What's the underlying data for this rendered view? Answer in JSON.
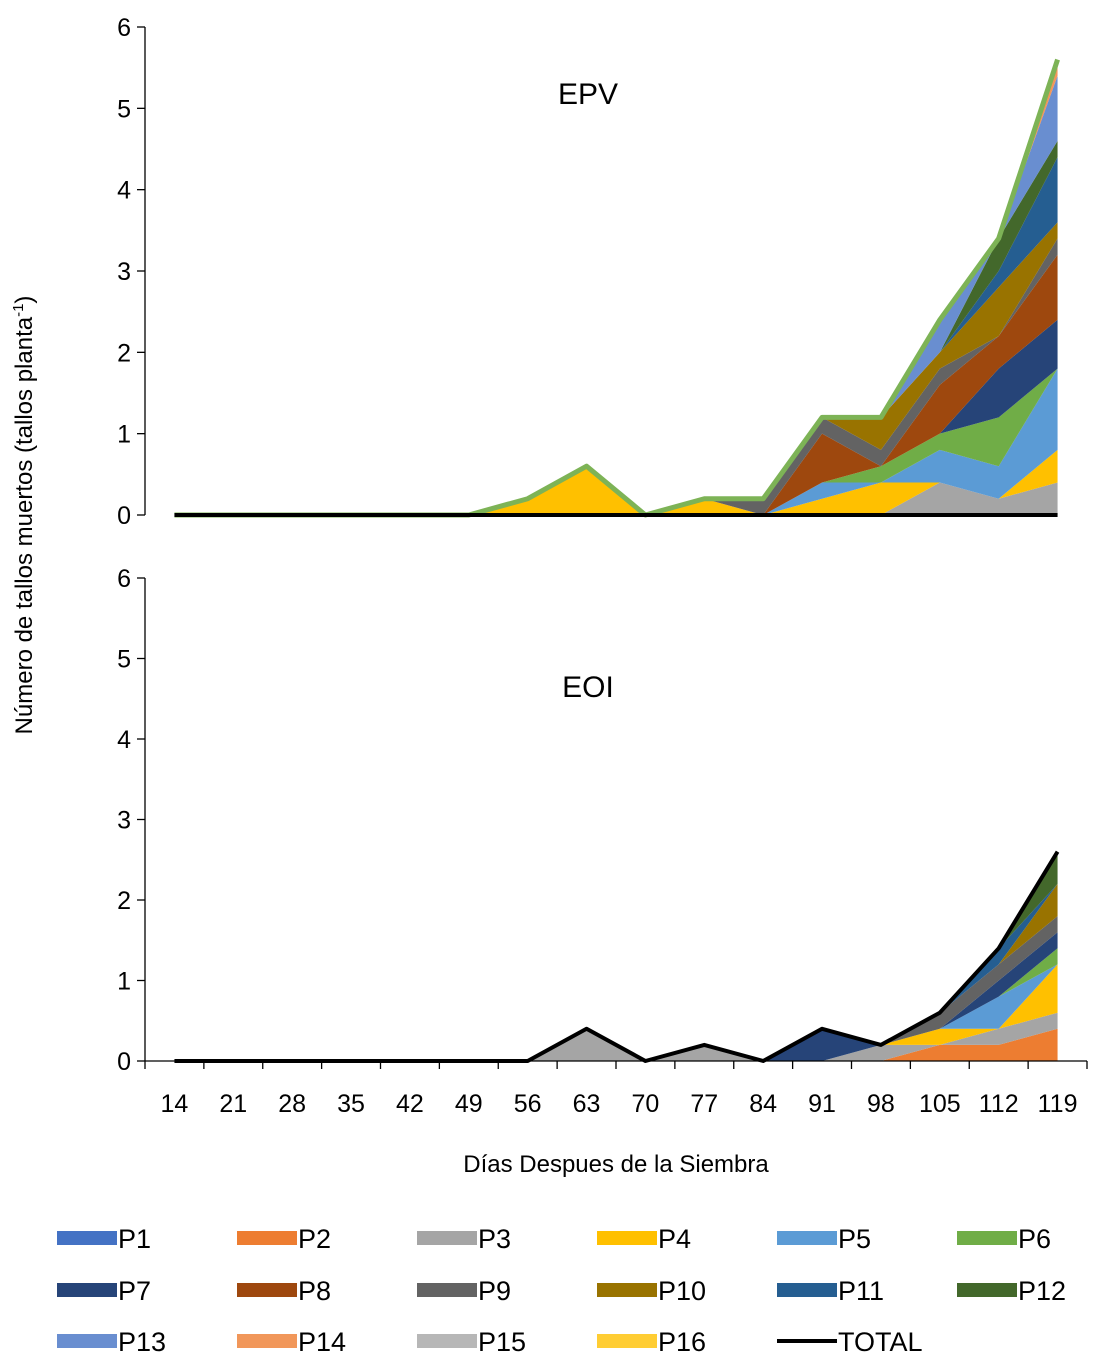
{
  "colors": {
    "P1": "#4472C4",
    "P2": "#ED7D31",
    "P3": "#A5A5A5",
    "P4": "#FFC000",
    "P5": "#5B9BD5",
    "P6": "#70AD47",
    "P7": "#264478",
    "P8": "#9E480E",
    "P9": "#636363",
    "P10": "#997300",
    "P11": "#255E91",
    "P12": "#43682B",
    "P13": "#698ED0",
    "P14": "#F1975A",
    "P15": "#B7B7B7",
    "P16": "#FFCD33",
    "TOTAL": "#000000",
    "EPV_outline": "#7DB356"
  },
  "chart_data": {
    "type": "area",
    "stacked": true,
    "xlabel": "Días Despues de la Siembra",
    "ylabel": "Número de tallos muertos (tallos planta",
    "ylabel_sup": "-1",
    "ylabel_close": ")",
    "categories": [
      "14",
      "21",
      "28",
      "35",
      "42",
      "49",
      "56",
      "63",
      "70",
      "77",
      "84",
      "91",
      "98",
      "105",
      "112",
      "119"
    ],
    "ylim": [
      0,
      6
    ],
    "yticks": [
      "0",
      "1",
      "2",
      "3",
      "4",
      "5",
      "6"
    ],
    "legend": [
      "P1",
      "P2",
      "P3",
      "P4",
      "P5",
      "P6",
      "P7",
      "P8",
      "P9",
      "P10",
      "P11",
      "P12",
      "P13",
      "P14",
      "P15",
      "P16",
      "TOTAL"
    ],
    "legend_position": "bottom",
    "panels": [
      {
        "label": "EPV",
        "series": [
          {
            "name": "P1",
            "values": [
              0,
              0,
              0,
              0,
              0,
              0,
              0,
              0,
              0,
              0,
              0,
              0,
              0,
              0,
              0,
              0
            ]
          },
          {
            "name": "P2",
            "values": [
              0,
              0,
              0,
              0,
              0,
              0,
              0,
              0,
              0,
              0,
              0,
              0,
              0,
              0,
              0,
              0
            ]
          },
          {
            "name": "P3",
            "values": [
              0,
              0,
              0,
              0,
              0,
              0,
              0,
              0,
              0,
              0,
              0,
              0,
              0,
              0.4,
              0.2,
              0.4
            ]
          },
          {
            "name": "P4",
            "values": [
              0,
              0,
              0,
              0,
              0,
              0,
              0.2,
              0.6,
              0,
              0.2,
              0,
              0.2,
              0.4,
              0,
              0,
              0.4
            ]
          },
          {
            "name": "P5",
            "values": [
              0,
              0,
              0,
              0,
              0,
              0,
              0,
              0,
              0,
              0,
              0,
              0.2,
              0,
              0.4,
              0.4,
              1.0
            ]
          },
          {
            "name": "P6",
            "values": [
              0,
              0,
              0,
              0,
              0,
              0,
              0,
              0,
              0,
              0,
              0,
              0,
              0.2,
              0.2,
              0.6,
              0
            ]
          },
          {
            "name": "P7",
            "values": [
              0,
              0,
              0,
              0,
              0,
              0,
              0,
              0,
              0,
              0,
              0,
              0,
              0,
              0,
              0.6,
              0.6
            ]
          },
          {
            "name": "P8",
            "values": [
              0,
              0,
              0,
              0,
              0,
              0,
              0,
              0,
              0,
              0,
              0,
              0.6,
              0,
              0.6,
              0.4,
              0.8
            ]
          },
          {
            "name": "P9",
            "values": [
              0,
              0,
              0,
              0,
              0,
              0,
              0,
              0,
              0,
              0,
              0.2,
              0.2,
              0.2,
              0.2,
              0,
              0.2
            ]
          },
          {
            "name": "P10",
            "values": [
              0,
              0,
              0,
              0,
              0,
              0,
              0,
              0,
              0,
              0,
              0,
              0,
              0.4,
              0.2,
              0.6,
              0.2
            ]
          },
          {
            "name": "P11",
            "values": [
              0,
              0,
              0,
              0,
              0,
              0,
              0,
              0,
              0,
              0,
              0,
              0,
              0,
              0,
              0.2,
              0.8
            ]
          },
          {
            "name": "P12",
            "values": [
              0,
              0,
              0,
              0,
              0,
              0,
              0,
              0,
              0,
              0,
              0,
              0,
              0,
              0,
              0.4,
              0.2
            ]
          },
          {
            "name": "P13",
            "values": [
              0,
              0,
              0,
              0,
              0,
              0,
              0,
              0,
              0,
              0,
              0,
              0,
              0,
              0.4,
              0,
              0.8
            ]
          },
          {
            "name": "P14",
            "values": [
              0,
              0,
              0,
              0,
              0,
              0,
              0,
              0,
              0,
              0,
              0,
              0,
              0,
              0,
              0,
              0.2
            ]
          },
          {
            "name": "P15",
            "values": [
              0,
              0,
              0,
              0,
              0,
              0,
              0,
              0,
              0,
              0,
              0,
              0,
              0,
              0,
              0,
              0
            ]
          },
          {
            "name": "P16",
            "values": [
              0,
              0,
              0,
              0,
              0,
              0,
              0,
              0,
              0,
              0,
              0,
              0,
              0,
              0,
              0,
              0
            ]
          }
        ],
        "total": [
          0,
          0,
          0,
          0,
          0,
          0,
          0,
          0,
          0,
          0,
          0,
          0,
          0,
          0,
          0,
          0
        ],
        "outline": [
          0,
          0,
          0,
          0,
          0,
          0,
          0.2,
          0.6,
          0,
          0.2,
          0.2,
          1.2,
          1.2,
          2.4,
          3.4,
          5.6
        ]
      },
      {
        "label": "EOI",
        "series": [
          {
            "name": "P1",
            "values": [
              0,
              0,
              0,
              0,
              0,
              0,
              0,
              0,
              0,
              0,
              0,
              0,
              0,
              0,
              0,
              0
            ]
          },
          {
            "name": "P2",
            "values": [
              0,
              0,
              0,
              0,
              0,
              0,
              0,
              0,
              0,
              0,
              0,
              0,
              0,
              0.2,
              0.2,
              0.4
            ]
          },
          {
            "name": "P3",
            "values": [
              0,
              0,
              0,
              0,
              0,
              0,
              0,
              0.4,
              0,
              0.2,
              0,
              0,
              0.2,
              0,
              0.2,
              0.2
            ]
          },
          {
            "name": "P4",
            "values": [
              0,
              0,
              0,
              0,
              0,
              0,
              0,
              0,
              0,
              0,
              0,
              0,
              0,
              0.2,
              0,
              0.6
            ]
          },
          {
            "name": "P5",
            "values": [
              0,
              0,
              0,
              0,
              0,
              0,
              0,
              0,
              0,
              0,
              0,
              0,
              0,
              0,
              0.4,
              0
            ]
          },
          {
            "name": "P6",
            "values": [
              0,
              0,
              0,
              0,
              0,
              0,
              0,
              0,
              0,
              0,
              0,
              0,
              0,
              0,
              0,
              0.2
            ]
          },
          {
            "name": "P7",
            "values": [
              0,
              0,
              0,
              0,
              0,
              0,
              0,
              0,
              0,
              0,
              0,
              0.4,
              0,
              0,
              0.2,
              0.2
            ]
          },
          {
            "name": "P8",
            "values": [
              0,
              0,
              0,
              0,
              0,
              0,
              0,
              0,
              0,
              0,
              0,
              0,
              0,
              0,
              0,
              0
            ]
          },
          {
            "name": "P9",
            "values": [
              0,
              0,
              0,
              0,
              0,
              0,
              0,
              0,
              0,
              0,
              0,
              0,
              0,
              0.2,
              0.2,
              0.2
            ]
          },
          {
            "name": "P10",
            "values": [
              0,
              0,
              0,
              0,
              0,
              0,
              0,
              0,
              0,
              0,
              0,
              0,
              0,
              0,
              0,
              0.4
            ]
          },
          {
            "name": "P11",
            "values": [
              0,
              0,
              0,
              0,
              0,
              0,
              0,
              0,
              0,
              0,
              0,
              0,
              0,
              0,
              0.2,
              0
            ]
          },
          {
            "name": "P12",
            "values": [
              0,
              0,
              0,
              0,
              0,
              0,
              0,
              0,
              0,
              0,
              0,
              0,
              0,
              0,
              0,
              0.4
            ]
          },
          {
            "name": "P13",
            "values": [
              0,
              0,
              0,
              0,
              0,
              0,
              0,
              0,
              0,
              0,
              0,
              0,
              0,
              0,
              0,
              0
            ]
          },
          {
            "name": "P14",
            "values": [
              0,
              0,
              0,
              0,
              0,
              0,
              0,
              0,
              0,
              0,
              0,
              0,
              0,
              0,
              0,
              0
            ]
          },
          {
            "name": "P15",
            "values": [
              0,
              0,
              0,
              0,
              0,
              0,
              0,
              0,
              0,
              0,
              0,
              0,
              0,
              0,
              0,
              0
            ]
          },
          {
            "name": "P16",
            "values": [
              0,
              0,
              0,
              0,
              0,
              0,
              0,
              0,
              0,
              0,
              0,
              0,
              0,
              0,
              0,
              0
            ]
          }
        ],
        "total": [
          0,
          0,
          0,
          0,
          0,
          0,
          0,
          0.4,
          0,
          0.2,
          0,
          0.4,
          0.2,
          0.6,
          1.4,
          2.6
        ]
      }
    ]
  }
}
